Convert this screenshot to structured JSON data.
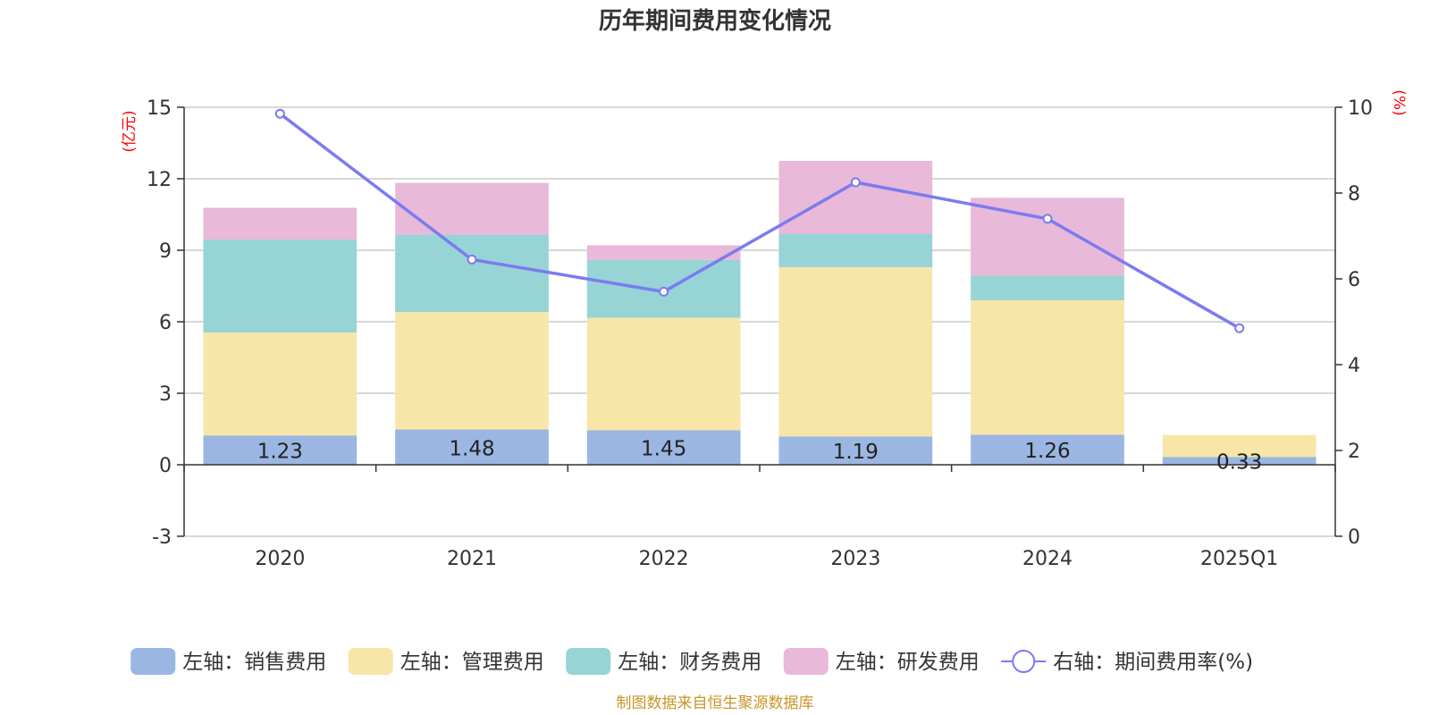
{
  "chart_data": {
    "type": "bar+line",
    "title": "历年期间费用变化情况",
    "categories": [
      "2020",
      "2021",
      "2022",
      "2023",
      "2024",
      "2025Q1"
    ],
    "left_axis": {
      "unit": "(亿元)",
      "ylim": [
        -3,
        15
      ],
      "ticks": [
        -3,
        0,
        3,
        6,
        9,
        12,
        15
      ]
    },
    "right_axis": {
      "unit": "(%)",
      "ylim": [
        0,
        10
      ],
      "ticks": [
        0,
        2,
        4,
        6,
        8,
        10
      ]
    },
    "series": [
      {
        "name": "左轴：销售费用",
        "type": "bar",
        "axis": "left",
        "color": "#9bb6e2",
        "values": [
          1.23,
          1.48,
          1.45,
          1.19,
          1.26,
          0.33
        ],
        "labels": [
          "1.23",
          "1.48",
          "1.45",
          "1.19",
          "1.26",
          "0.33"
        ]
      },
      {
        "name": "左轴：管理费用",
        "type": "bar",
        "axis": "left",
        "color": "#f7e6a8",
        "values": [
          4.32,
          4.93,
          4.72,
          7.1,
          5.64,
          0.92
        ]
      },
      {
        "name": "左轴：财务费用",
        "type": "bar",
        "axis": "left",
        "color": "#97d4d5",
        "values": [
          3.9,
          3.25,
          2.42,
          1.4,
          1.04,
          0
        ]
      },
      {
        "name": "左轴：研发费用",
        "type": "bar",
        "axis": "left",
        "color": "#e8b9d9",
        "values": [
          1.33,
          2.17,
          0.62,
          3.06,
          3.26,
          0
        ]
      },
      {
        "name": "右轴：期间费用率(%)",
        "type": "line",
        "axis": "right",
        "color": "#7b7bf0",
        "values": [
          9.85,
          6.45,
          5.7,
          8.25,
          7.4,
          4.85
        ]
      }
    ],
    "legend_position": "bottom",
    "source": "制图数据来自恒生聚源数据库"
  }
}
